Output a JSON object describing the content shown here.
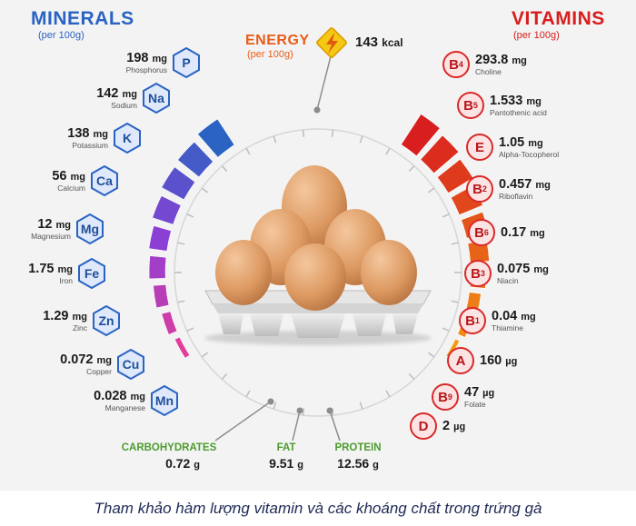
{
  "minerals": {
    "title": "MINERALS",
    "subtitle": "(per 100g)",
    "items": [
      {
        "value": "198",
        "unit": "mg",
        "name": "Phosphorus",
        "symbol": "P"
      },
      {
        "value": "142",
        "unit": "mg",
        "name": "Sodium",
        "symbol": "Na"
      },
      {
        "value": "138",
        "unit": "mg",
        "name": "Potassium",
        "symbol": "K"
      },
      {
        "value": "56",
        "unit": "mg",
        "name": "Calcium",
        "symbol": "Ca"
      },
      {
        "value": "12",
        "unit": "mg",
        "name": "Magnesium",
        "symbol": "Mg"
      },
      {
        "value": "1.75",
        "unit": "mg",
        "name": "Iron",
        "symbol": "Fe"
      },
      {
        "value": "1.29",
        "unit": "mg",
        "name": "Zinc",
        "symbol": "Zn"
      },
      {
        "value": "0.072",
        "unit": "mg",
        "name": "Copper",
        "symbol": "Cu"
      },
      {
        "value": "0.028",
        "unit": "mg",
        "name": "Manganese",
        "symbol": "Mn"
      }
    ]
  },
  "vitamins": {
    "title": "VITAMINS",
    "subtitle": "(per 100g)",
    "items": [
      {
        "letter": "B",
        "sub": "4",
        "value": "293.8",
        "unit": "mg",
        "name": "Choline"
      },
      {
        "letter": "B",
        "sub": "5",
        "value": "1.533",
        "unit": "mg",
        "name": "Pantothenic acid"
      },
      {
        "letter": "E",
        "sub": "",
        "value": "1.05",
        "unit": "mg",
        "name": "Alpha-Tocopherol"
      },
      {
        "letter": "B",
        "sub": "2",
        "value": "0.457",
        "unit": "mg",
        "name": "Riboflavin"
      },
      {
        "letter": "B",
        "sub": "6",
        "value": "0.17",
        "unit": "mg",
        "name": ""
      },
      {
        "letter": "B",
        "sub": "3",
        "value": "0.075",
        "unit": "mg",
        "name": "Niacin"
      },
      {
        "letter": "B",
        "sub": "1",
        "value": "0.04",
        "unit": "mg",
        "name": "Thiamine"
      },
      {
        "letter": "A",
        "sub": "",
        "value": "160",
        "unit": "µg",
        "name": ""
      },
      {
        "letter": "B",
        "sub": "9",
        "value": "47",
        "unit": "µg",
        "name": "Folate"
      },
      {
        "letter": "D",
        "sub": "",
        "value": "2",
        "unit": "µg",
        "name": ""
      }
    ]
  },
  "energy": {
    "title": "ENERGY",
    "subtitle": "(per 100g)",
    "value": "143",
    "unit": "kcal"
  },
  "macros": [
    {
      "name": "CARBOHYDRATES",
      "value": "0.72",
      "unit": "g"
    },
    {
      "name": "FAT",
      "value": "9.51",
      "unit": "g"
    },
    {
      "name": "PROTEIN",
      "value": "12.56",
      "unit": "g"
    }
  ],
  "caption": "Tham khảo hàm lượng vitamin và các khoáng chất trong trứng gà",
  "colors": {
    "mineral_blue": "#2b63c3",
    "mineral_purple": "#8c3fd4",
    "mineral_pink": "#e23d9a",
    "vitamin_red": "#d81e1e",
    "vitamin_orange": "#f39a14",
    "macro_green": "#4c9c2f",
    "energy_orange": "#e85d18"
  }
}
